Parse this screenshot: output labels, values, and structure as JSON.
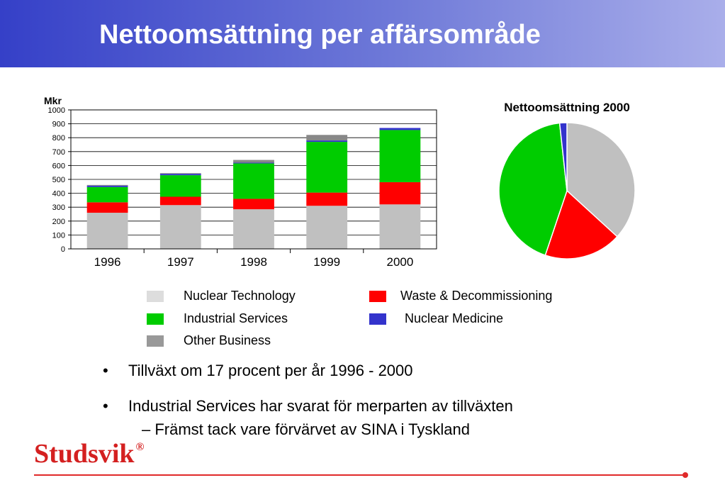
{
  "slide": {
    "title": "Nettoomsättning per affärsområde",
    "bullets": [
      "Tillväxt om 17 procent per år 1996 - 2000",
      "Industrial Services har svarat för merparten av tillväxten"
    ],
    "sub_bullet": "–  Främst tack vare förvärvet av SINA i Tyskland",
    "bullet_symbol": "•",
    "logo_text": "Studsvik",
    "logo_mark": "®",
    "accent_color": "#e02a2a"
  },
  "legend": [
    {
      "label": "Nuclear Technology",
      "color": "#dddddd"
    },
    {
      "label": "Waste & Decommissioning",
      "color": "#ff0000"
    },
    {
      "label": "Industrial Services",
      "color": "#00cc00"
    },
    {
      "label": "Nuclear Medicine",
      "color": "#3333cc"
    },
    {
      "label": "Other Business",
      "color": "#999999"
    }
  ],
  "chart_data": [
    {
      "type": "bar",
      "stacked": true,
      "ylabel": "Mkr",
      "ylim": [
        0,
        1000
      ],
      "yticks": [
        0,
        100,
        200,
        300,
        400,
        500,
        600,
        700,
        800,
        900,
        1000
      ],
      "categories": [
        "1996",
        "1997",
        "1998",
        "1999",
        "2000"
      ],
      "grid": true,
      "series": [
        {
          "name": "Nuclear Technology",
          "color": "#c0c0c0",
          "values": [
            260,
            315,
            285,
            310,
            320
          ]
        },
        {
          "name": "Waste & Decommissioning",
          "color": "#ff0000",
          "values": [
            75,
            60,
            75,
            95,
            160
          ]
        },
        {
          "name": "Industrial Services",
          "color": "#00cc00",
          "values": [
            110,
            155,
            255,
            365,
            375
          ]
        },
        {
          "name": "Nuclear Medicine",
          "color": "#3333cc",
          "values": [
            10,
            10,
            5,
            10,
            15
          ]
        },
        {
          "name": "Other Business",
          "color": "#888888",
          "values": [
            5,
            5,
            20,
            40,
            0
          ]
        }
      ]
    },
    {
      "type": "pie",
      "title": "Nettoomsättning 2000",
      "slices": [
        {
          "name": "Nuclear Technology",
          "color": "#c0c0c0",
          "value": 320
        },
        {
          "name": "Waste & Decommissioning",
          "color": "#ff0000",
          "value": 160
        },
        {
          "name": "Industrial Services",
          "color": "#00cc00",
          "value": 375
        },
        {
          "name": "Nuclear Medicine",
          "color": "#3333cc",
          "value": 15
        }
      ]
    }
  ]
}
